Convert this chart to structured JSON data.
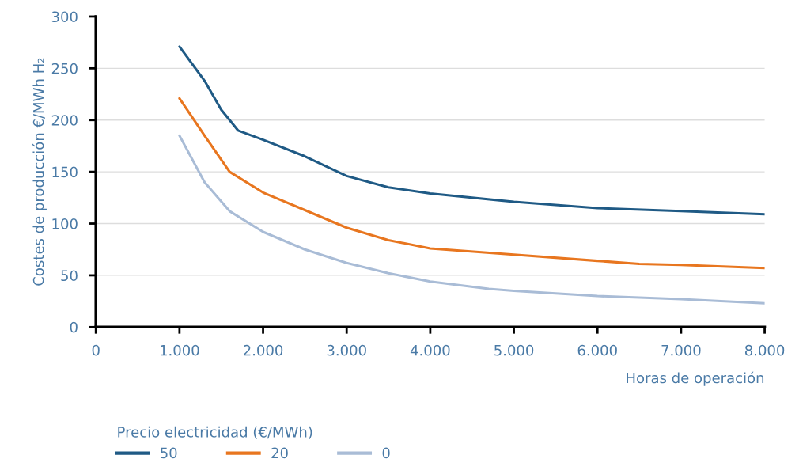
{
  "chart_data": {
    "type": "line",
    "xlabel": "Horas de operación",
    "ylabel": "Costes de producción €/MWh H₂",
    "legend_title": "Precio electricidad (€/MWh)",
    "legend": "bottom left",
    "grid": "y",
    "marker": "none",
    "line_style": "solid",
    "xlim": [
      0,
      8000
    ],
    "ylim": [
      0,
      300
    ],
    "xticks": [
      0,
      {
        "value": 1000,
        "label": "1.000"
      },
      {
        "value": 2000,
        "label": "2.000"
      },
      {
        "value": 3000,
        "label": "3.000"
      },
      {
        "value": 4000,
        "label": "4.000"
      },
      {
        "value": 5000,
        "label": "5.000"
      },
      {
        "value": 6000,
        "label": "6.000"
      },
      {
        "value": 7000,
        "label": "7.000"
      },
      {
        "value": 8000,
        "label": "8.000"
      }
    ],
    "yticks": [
      0,
      50,
      100,
      150,
      200,
      250,
      300
    ],
    "series": [
      {
        "name": "50",
        "color": "#1f5a85",
        "x": [
          1000,
          1300,
          1500,
          1700,
          2000,
          2500,
          3000,
          3500,
          4000,
          5000,
          6000,
          7000,
          8000
        ],
        "values": [
          271,
          238,
          210,
          190,
          181,
          165,
          146,
          135,
          129,
          121,
          115,
          112,
          109
        ]
      },
      {
        "name": "20",
        "color": "#e8761f",
        "x": [
          1000,
          1300,
          1600,
          2000,
          2500,
          3000,
          3500,
          4000,
          5000,
          6000,
          6500,
          7000,
          8000
        ],
        "values": [
          221,
          185,
          150,
          130,
          113,
          96,
          84,
          76,
          70,
          64,
          61,
          60,
          57
        ]
      },
      {
        "name": "0",
        "color": "#a9bcd6",
        "x": [
          1000,
          1300,
          1600,
          2000,
          2500,
          3000,
          3500,
          4000,
          4700,
          5000,
          6000,
          7000,
          8000
        ],
        "values": [
          185,
          140,
          112,
          92,
          75,
          62,
          52,
          44,
          37,
          35,
          30,
          27,
          23
        ]
      }
    ]
  }
}
